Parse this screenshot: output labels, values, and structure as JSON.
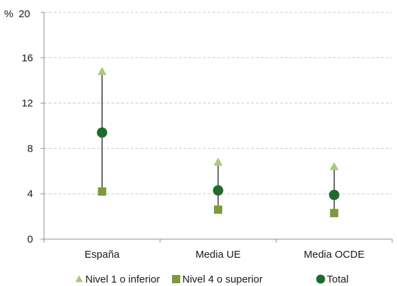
{
  "chart_data": {
    "type": "scatter",
    "y_unit_label": "%",
    "categories": [
      "España",
      "Media UE",
      "Media OCDE"
    ],
    "ylim": [
      0,
      20
    ],
    "yticks": [
      0,
      4,
      8,
      12,
      16,
      20
    ],
    "grid": true,
    "legend_position": "bottom",
    "series": [
      {
        "name": "Nivel 1 o inferior",
        "marker": "triangle",
        "color": "#a9c97f",
        "values": [
          14.8,
          6.8,
          6.4
        ]
      },
      {
        "name": "Nivel 4 o superior",
        "marker": "square",
        "color": "#7d9a3c",
        "values": [
          4.2,
          2.6,
          2.3
        ]
      },
      {
        "name": "Total",
        "marker": "circle",
        "color": "#1e6b2d",
        "values": [
          9.4,
          4.3,
          3.9
        ]
      }
    ]
  }
}
